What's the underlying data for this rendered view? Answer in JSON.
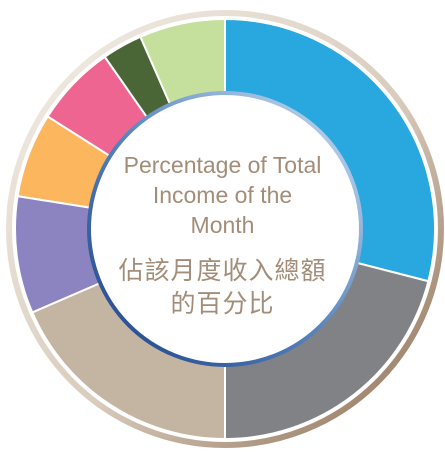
{
  "chart_data": {
    "type": "donut",
    "title": "Percentage of Total Income of the Month",
    "subtitle": "佔該月度收入總額的百分比",
    "values": [
      29,
      21,
      18.5,
      9,
      6.5,
      6.3,
      3.1,
      6.6
    ],
    "colors": [
      "#29a8e0",
      "#808285",
      "#c4b5a3",
      "#8c84c0",
      "#fbb65e",
      "#ef6591",
      "#4a6637",
      "#c5df9c"
    ]
  }
}
